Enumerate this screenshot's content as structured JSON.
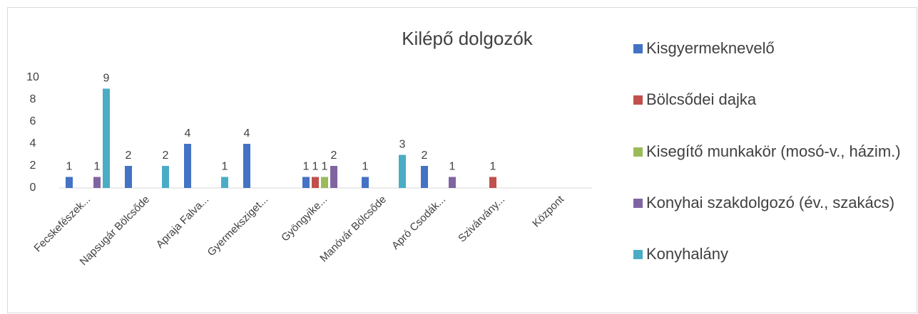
{
  "chart_data": {
    "type": "bar",
    "title": "Kilépő dolgozók",
    "categories": [
      "Fecskefészek...",
      "Napsugár Bölcsőde",
      "Apraja Falva...",
      "Gyermeksziget...",
      "Gyöngyike...",
      "Manóvár Bölcsőde",
      "Apró Csodák...",
      "Szivárvány...",
      "Központ"
    ],
    "series": [
      {
        "name": "Kisgyermeknevelő",
        "color": "#4472c4",
        "values": [
          1,
          2,
          4,
          4,
          1,
          1,
          2,
          null,
          null
        ]
      },
      {
        "name": "Bölcsődei dajka",
        "color": "#c0504d",
        "values": [
          null,
          null,
          null,
          null,
          1,
          null,
          null,
          1,
          null
        ]
      },
      {
        "name": "Kisegítő munkakör (mosó-v., házim.)",
        "color": "#9bbb59",
        "values": [
          null,
          null,
          null,
          null,
          1,
          null,
          null,
          null,
          null
        ]
      },
      {
        "name": "Konyhai szakdolgozó (év., szakács)",
        "color": "#8064a2",
        "values": [
          1,
          null,
          null,
          null,
          2,
          null,
          1,
          null,
          null
        ]
      },
      {
        "name": "Konyhalány",
        "color": "#4bacc6",
        "values": [
          9,
          2,
          1,
          null,
          null,
          3,
          null,
          null,
          null
        ]
      }
    ],
    "ylim": [
      0,
      10
    ],
    "yticks": [
      0,
      2,
      4,
      6,
      8,
      10
    ],
    "grid": false,
    "legend": "right"
  }
}
